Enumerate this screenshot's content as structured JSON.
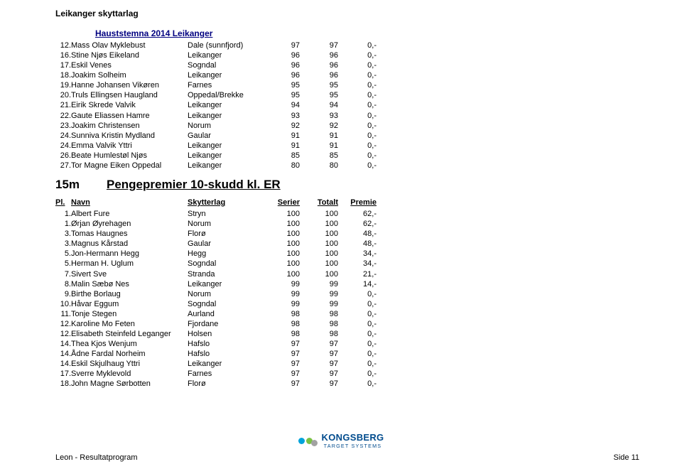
{
  "club_name": "Leikanger skyttarlag",
  "event_title": "Hauststemna 2014 Leikanger",
  "table1": {
    "rows": [
      {
        "pl": "12.",
        "name": "Mass Olav Myklebust",
        "club": "Dale (sunnfjord)",
        "serier": "97",
        "totalt": "97",
        "premie": "0,-"
      },
      {
        "pl": "16.",
        "name": "Stine Njøs Eikeland",
        "club": "Leikanger",
        "serier": "96",
        "totalt": "96",
        "premie": "0,-"
      },
      {
        "pl": "17.",
        "name": "Eskil Venes",
        "club": "Sogndal",
        "serier": "96",
        "totalt": "96",
        "premie": "0,-"
      },
      {
        "pl": "18.",
        "name": "Joakim Solheim",
        "club": "Leikanger",
        "serier": "96",
        "totalt": "96",
        "premie": "0,-"
      },
      {
        "pl": "19.",
        "name": "Hanne Johansen Vikøren",
        "club": "Farnes",
        "serier": "95",
        "totalt": "95",
        "premie": "0,-"
      },
      {
        "pl": "20.",
        "name": "Truls Ellingsen Haugland",
        "club": "Oppedal/Brekke",
        "serier": "95",
        "totalt": "95",
        "premie": "0,-"
      },
      {
        "pl": "21.",
        "name": "Eirik Skrede Valvik",
        "club": "Leikanger",
        "serier": "94",
        "totalt": "94",
        "premie": "0,-"
      },
      {
        "pl": "22.",
        "name": "Gaute Eliassen Hamre",
        "club": "Leikanger",
        "serier": "93",
        "totalt": "93",
        "premie": "0,-"
      },
      {
        "pl": "23.",
        "name": "Joakim Christensen",
        "club": "Norum",
        "serier": "92",
        "totalt": "92",
        "premie": "0,-"
      },
      {
        "pl": "24.",
        "name": "Sunniva Kristin Mydland",
        "club": "Gaular",
        "serier": "91",
        "totalt": "91",
        "premie": "0,-"
      },
      {
        "pl": "24.",
        "name": "Emma Valvik Yttri",
        "club": "Leikanger",
        "serier": "91",
        "totalt": "91",
        "premie": "0,-"
      },
      {
        "pl": "26.",
        "name": "Beate Humlestøl Njøs",
        "club": "Leikanger",
        "serier": "85",
        "totalt": "85",
        "premie": "0,-"
      },
      {
        "pl": "27.",
        "name": "Tor Magne Eiken Oppedal",
        "club": "Leikanger",
        "serier": "80",
        "totalt": "80",
        "premie": "0,-"
      }
    ]
  },
  "section2": {
    "distance": "15m",
    "title": "Pengepremier 10-skudd kl. ER",
    "headers": {
      "pl": "Pl.",
      "name": "Navn",
      "club": "Skytterlag",
      "serier": "Serier",
      "totalt": "Totalt",
      "premie": "Premie"
    },
    "rows": [
      {
        "pl": "1.",
        "name": "Albert Fure",
        "club": "Stryn",
        "serier": "100",
        "totalt": "100",
        "premie": "62,-"
      },
      {
        "pl": "1.",
        "name": "Ørjan Øyrehagen",
        "club": "Norum",
        "serier": "100",
        "totalt": "100",
        "premie": "62,-"
      },
      {
        "pl": "3.",
        "name": "Tomas Haugnes",
        "club": "Florø",
        "serier": "100",
        "totalt": "100",
        "premie": "48,-"
      },
      {
        "pl": "3.",
        "name": "Magnus Kårstad",
        "club": "Gaular",
        "serier": "100",
        "totalt": "100",
        "premie": "48,-"
      },
      {
        "pl": "5.",
        "name": "Jon-Hermann Hegg",
        "club": "Hegg",
        "serier": "100",
        "totalt": "100",
        "premie": "34,-"
      },
      {
        "pl": "5.",
        "name": "Herman H. Uglum",
        "club": "Sogndal",
        "serier": "100",
        "totalt": "100",
        "premie": "34,-"
      },
      {
        "pl": "7.",
        "name": "Sivert Sve",
        "club": "Stranda",
        "serier": "100",
        "totalt": "100",
        "premie": "21,-"
      },
      {
        "pl": "8.",
        "name": "Malin Sæbø Nes",
        "club": "Leikanger",
        "serier": "99",
        "totalt": "99",
        "premie": "14,-"
      },
      {
        "pl": "9.",
        "name": "Birthe Borlaug",
        "club": "Norum",
        "serier": "99",
        "totalt": "99",
        "premie": "0,-"
      },
      {
        "pl": "10.",
        "name": "Håvar Eggum",
        "club": "Sogndal",
        "serier": "99",
        "totalt": "99",
        "premie": "0,-"
      },
      {
        "pl": "11.",
        "name": "Tonje Stegen",
        "club": "Aurland",
        "serier": "98",
        "totalt": "98",
        "premie": "0,-"
      },
      {
        "pl": "12.",
        "name": "Karoline Mo Feten",
        "club": "Fjordane",
        "serier": "98",
        "totalt": "98",
        "premie": "0,-"
      },
      {
        "pl": "12.",
        "name": "Elisabeth Steinfeld Leganger",
        "club": "Holsen",
        "serier": "98",
        "totalt": "98",
        "premie": "0,-"
      },
      {
        "pl": "14.",
        "name": "Thea Kjos Wenjum",
        "club": "Hafslo",
        "serier": "97",
        "totalt": "97",
        "premie": "0,-"
      },
      {
        "pl": "14.",
        "name": "Ådne Fardal Norheim",
        "club": "Hafslo",
        "serier": "97",
        "totalt": "97",
        "premie": "0,-"
      },
      {
        "pl": "14.",
        "name": "Eskil Skjulhaug Yttri",
        "club": "Leikanger",
        "serier": "97",
        "totalt": "97",
        "premie": "0,-"
      },
      {
        "pl": "17.",
        "name": "Sverre Myklevold",
        "club": "Farnes",
        "serier": "97",
        "totalt": "97",
        "premie": "0,-"
      },
      {
        "pl": "18.",
        "name": "John Magne Sørbotten",
        "club": "Florø",
        "serier": "97",
        "totalt": "97",
        "premie": "0,-"
      }
    ]
  },
  "footer": {
    "left": "Leon - Resultatprogram",
    "right": "Side 11",
    "logo_main": "KONGSBERG",
    "logo_sub": "TARGET SYSTEMS"
  }
}
